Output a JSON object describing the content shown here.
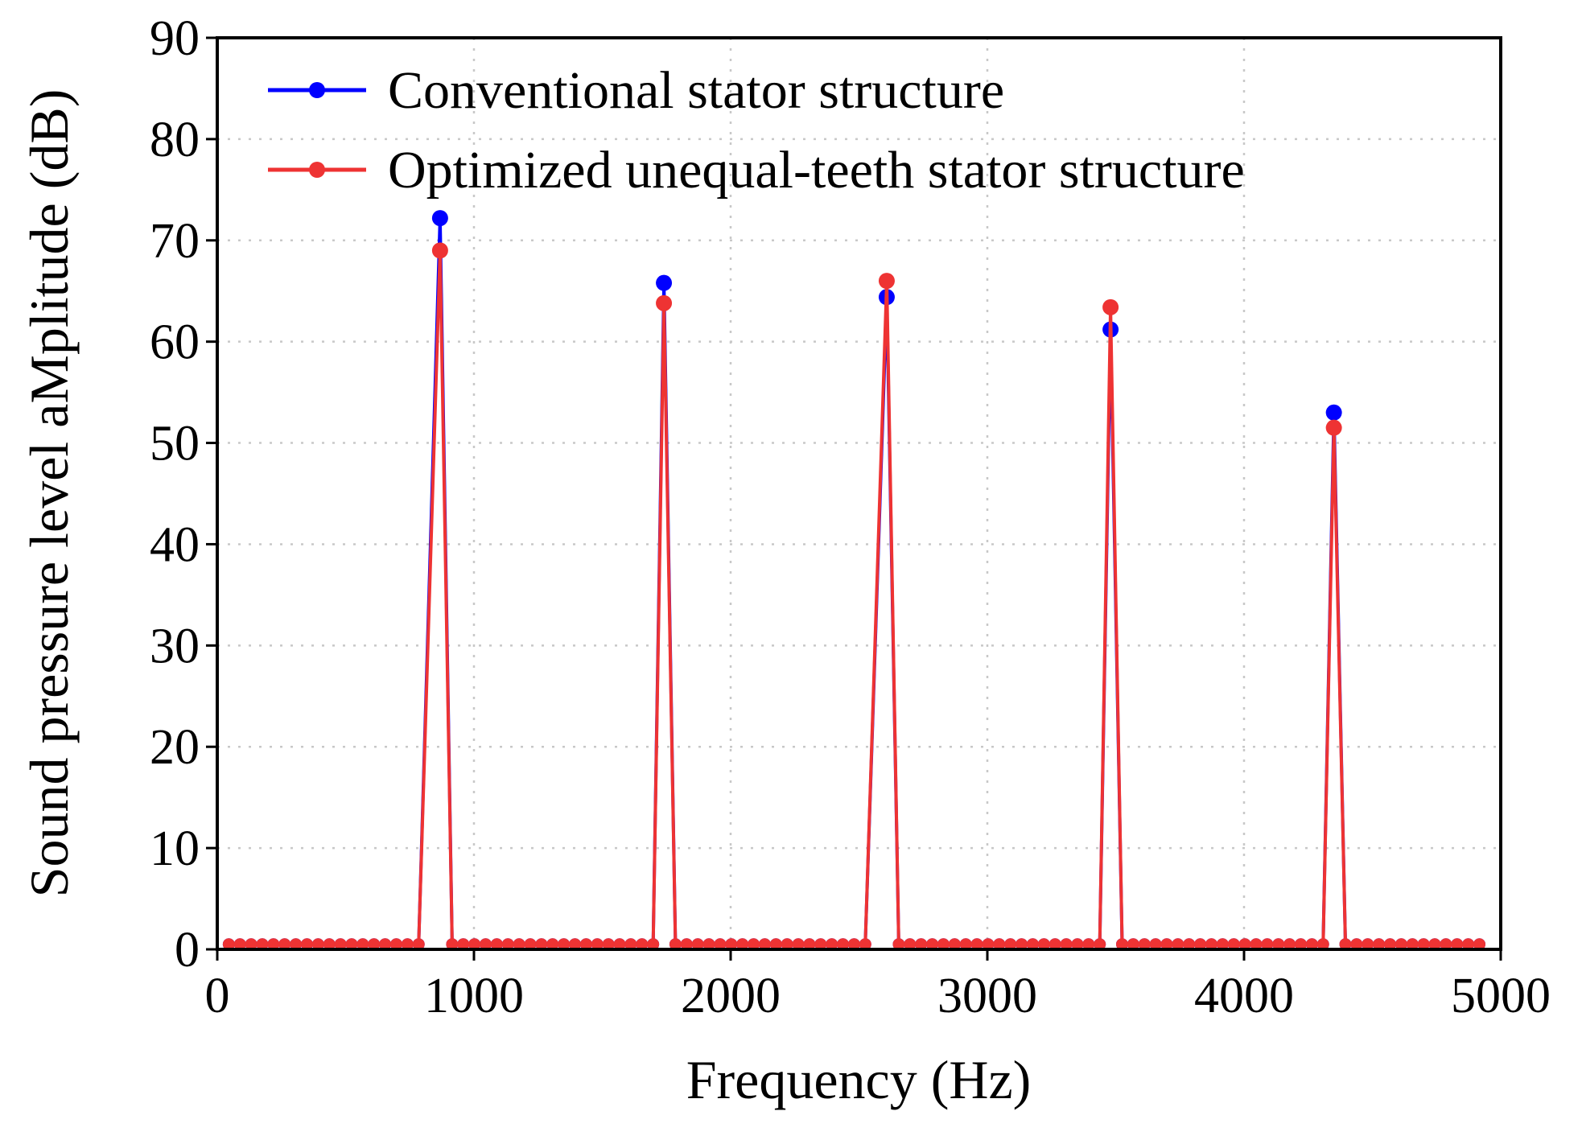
{
  "chart_data": {
    "type": "line",
    "xlabel": "Frequency (Hz)",
    "ylabel": "Sound pressure level aMplitude (dB)",
    "xlim": [
      0,
      5000
    ],
    "ylim": [
      0,
      90
    ],
    "xticks": [
      0,
      1000,
      2000,
      3000,
      4000,
      5000
    ],
    "yticks": [
      0,
      10,
      20,
      30,
      40,
      50,
      60,
      70,
      80,
      90
    ],
    "grid": true,
    "legend_position": "top-left",
    "baseline_value": 0.5,
    "sample_step": 43.5,
    "series": [
      {
        "name": "Conventional stator structure",
        "color": "#0000ff",
        "peaks": [
          {
            "x": 868,
            "y": 72.2
          },
          {
            "x": 1740,
            "y": 65.8
          },
          {
            "x": 2608,
            "y": 64.4
          },
          {
            "x": 3480,
            "y": 61.2
          },
          {
            "x": 4350,
            "y": 53.0
          }
        ]
      },
      {
        "name": "Optimized unequal-teeth stator structure",
        "color": "#ee3333",
        "peaks": [
          {
            "x": 868,
            "y": 69.0
          },
          {
            "x": 1740,
            "y": 63.8
          },
          {
            "x": 2608,
            "y": 66.0
          },
          {
            "x": 3480,
            "y": 63.4
          },
          {
            "x": 4350,
            "y": 51.5
          }
        ]
      }
    ]
  }
}
